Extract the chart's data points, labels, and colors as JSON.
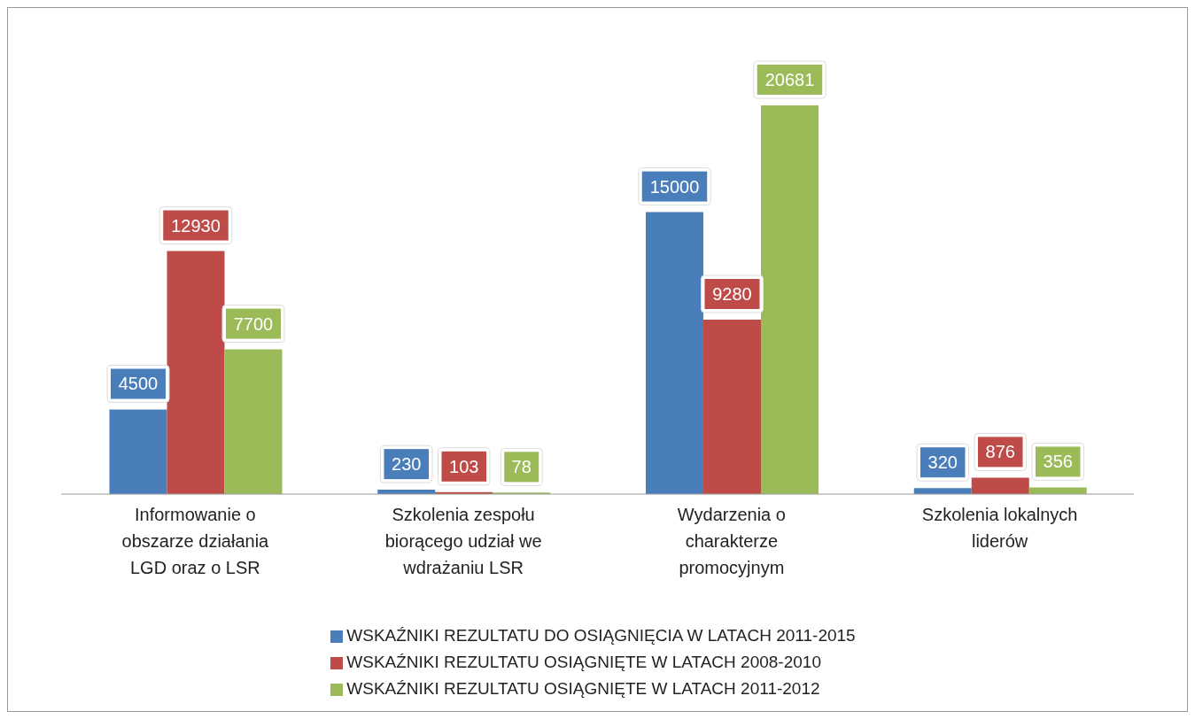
{
  "chart_data": {
    "type": "bar",
    "categories": [
      "Informowanie o obszarze działania LGD oraz o LSR",
      "Szkolenia zespołu biorącego udział we wdrażaniu LSR",
      "Wydarzenia o charakterze promocyjnym",
      "Szkolenia lokalnych liderów"
    ],
    "series": [
      {
        "name": "WSKAŹNIKI REZULTATU DO OSIĄGNIĘCIA W LATACH 2011-2015",
        "color": "#4a7ebb",
        "values": [
          4500,
          230,
          15000,
          320
        ]
      },
      {
        "name": "WSKAŹNIKI REZULTATU OSIĄGNIĘTE W LATACH 2008-2010",
        "color": "#be4b48",
        "values": [
          12930,
          103,
          9280,
          876
        ]
      },
      {
        "name": "WSKAŹNIKI REZULTATU OSIĄGNIĘTE W LATACH 2011-2012",
        "color": "#9bbb59",
        "values": [
          7700,
          78,
          20681,
          356
        ]
      }
    ],
    "data_labels": true,
    "legend": "bottom",
    "grid": false
  }
}
